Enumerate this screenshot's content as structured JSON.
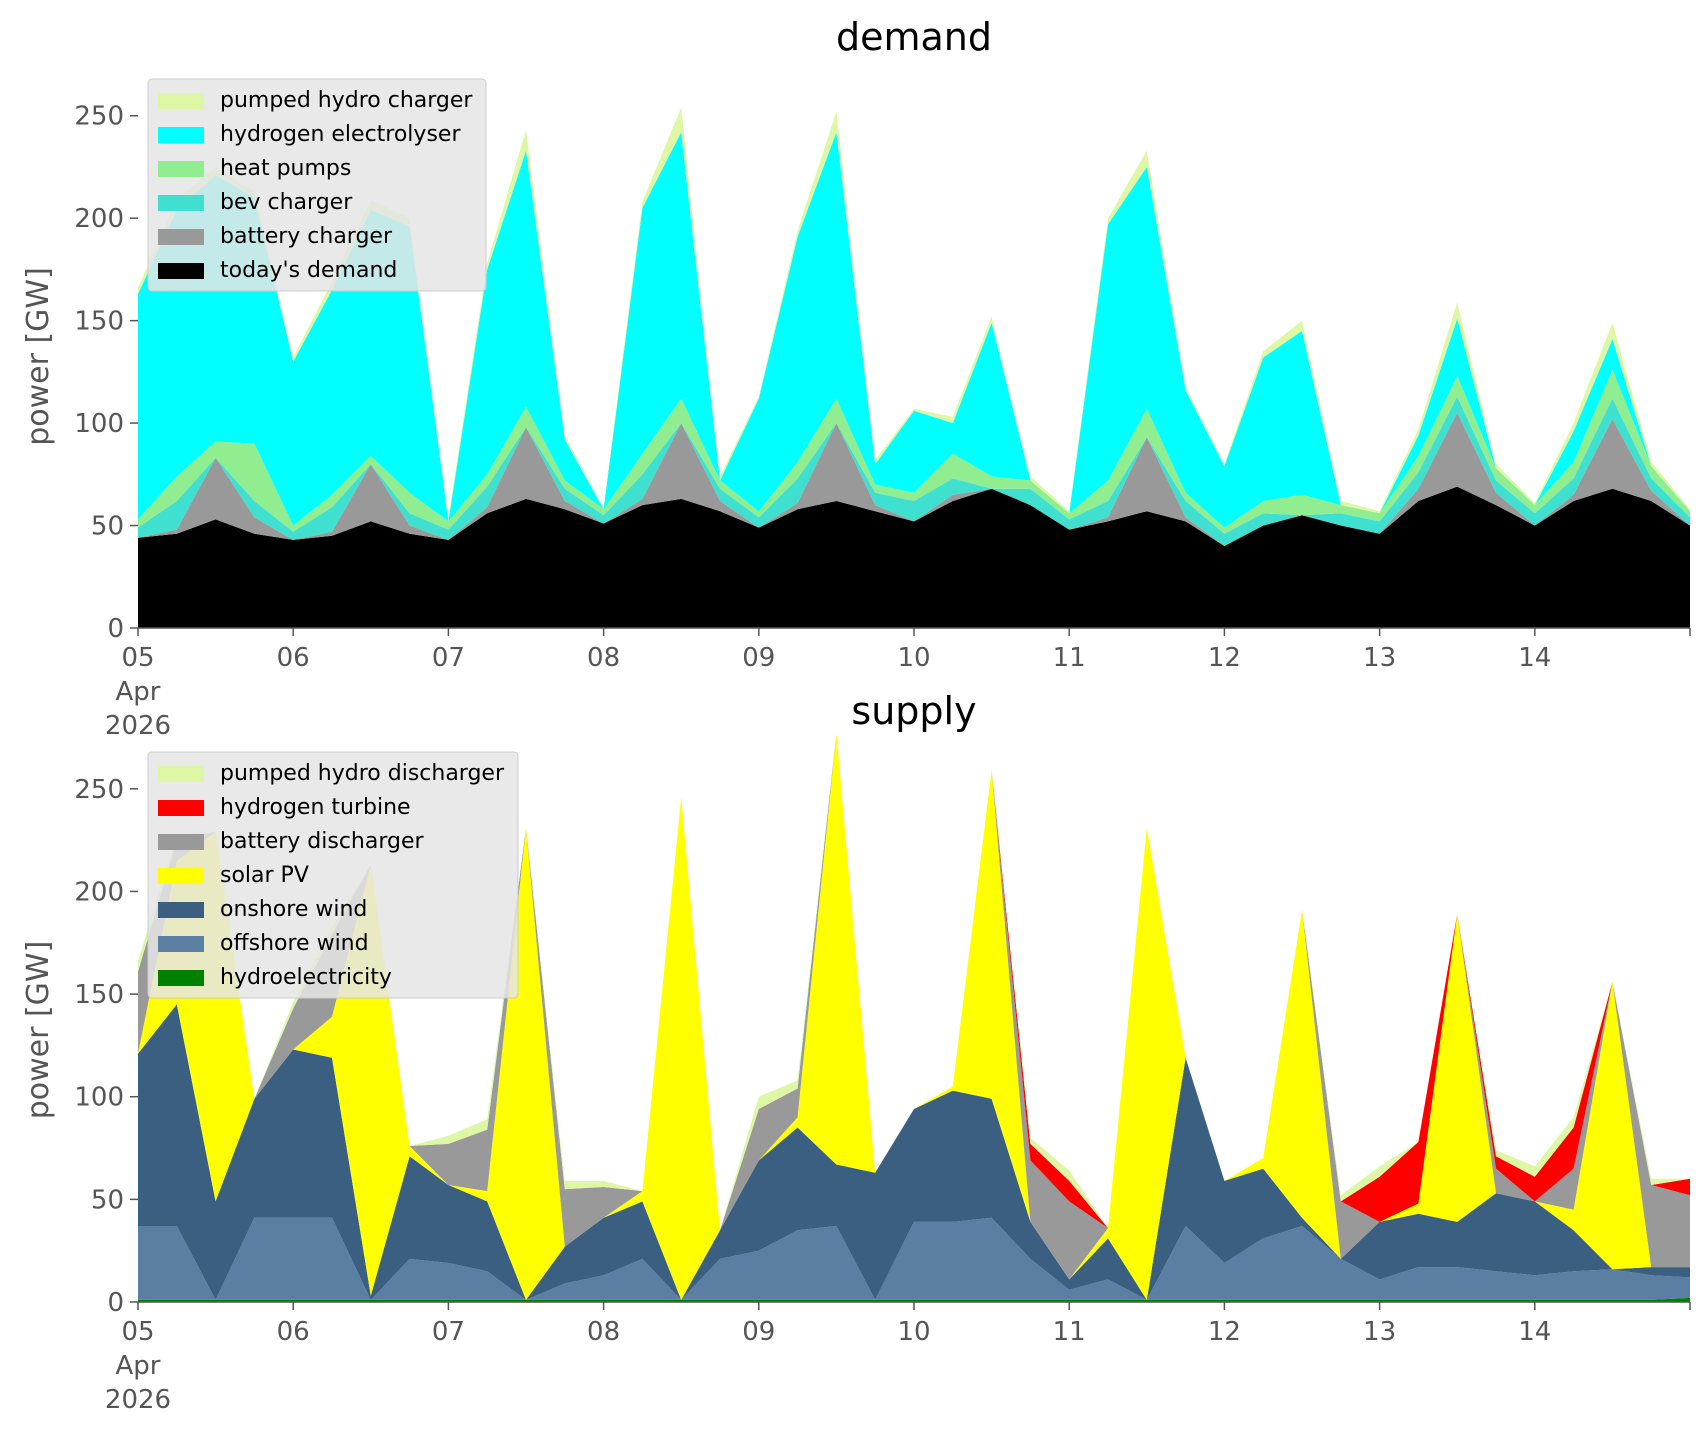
{
  "chart_data": [
    {
      "type": "area",
      "title": "demand",
      "xlabel": "",
      "ylabel": "power [GW]",
      "ylim": [
        0,
        265
      ],
      "yticks": [
        0,
        50,
        100,
        150,
        200,
        250
      ],
      "xlim": [
        "2026-04-05 00:00",
        "2026-04-15 00:00"
      ],
      "xtick_labels": [
        "05\nApr\n2026",
        "06",
        "07",
        "08",
        "09",
        "10",
        "11",
        "12",
        "13",
        "14"
      ],
      "grid": false,
      "legend": "top-left",
      "x": [
        "2026-04-05 00:00",
        "2026-04-05 06:00",
        "2026-04-05 12:00",
        "2026-04-05 18:00",
        "2026-04-06 00:00",
        "2026-04-06 06:00",
        "2026-04-06 12:00",
        "2026-04-06 18:00",
        "2026-04-07 00:00",
        "2026-04-07 06:00",
        "2026-04-07 12:00",
        "2026-04-07 18:00",
        "2026-04-08 00:00",
        "2026-04-08 06:00",
        "2026-04-08 12:00",
        "2026-04-08 18:00",
        "2026-04-09 00:00",
        "2026-04-09 06:00",
        "2026-04-09 12:00",
        "2026-04-09 18:00",
        "2026-04-10 00:00",
        "2026-04-10 06:00",
        "2026-04-10 12:00",
        "2026-04-10 18:00",
        "2026-04-11 00:00",
        "2026-04-11 06:00",
        "2026-04-11 12:00",
        "2026-04-11 18:00",
        "2026-04-12 00:00",
        "2026-04-12 06:00",
        "2026-04-12 12:00",
        "2026-04-12 18:00",
        "2026-04-13 00:00",
        "2026-04-13 06:00",
        "2026-04-13 12:00",
        "2026-04-13 18:00",
        "2026-04-14 00:00",
        "2026-04-14 06:00",
        "2026-04-14 12:00",
        "2026-04-14 18:00",
        "2026-04-15 00:00"
      ],
      "series": [
        {
          "name": "today's demand",
          "color": "#000000",
          "values": [
            44,
            46,
            53,
            46,
            43,
            45,
            52,
            46,
            43,
            56,
            63,
            58,
            51,
            60,
            63,
            57,
            49,
            58,
            62,
            57,
            52,
            62,
            68,
            60,
            48,
            52,
            57,
            52,
            40,
            50,
            55,
            50,
            46,
            62,
            69,
            60,
            50,
            62,
            68,
            62,
            50
          ]
        },
        {
          "name": "battery charger",
          "color": "#999999",
          "values": [
            0,
            2,
            30,
            8,
            0,
            2,
            28,
            4,
            0,
            3,
            35,
            4,
            0,
            3,
            37,
            5,
            0,
            3,
            38,
            3,
            0,
            3,
            0,
            0,
            0,
            2,
            36,
            2,
            0,
            0,
            0,
            0,
            0,
            6,
            36,
            6,
            0,
            3,
            34,
            5,
            0
          ]
        },
        {
          "name": "bev charger",
          "color": "#40e0d0",
          "values": [
            5,
            14,
            0,
            8,
            4,
            12,
            0,
            6,
            5,
            10,
            0,
            6,
            4,
            12,
            0,
            6,
            5,
            12,
            0,
            6,
            10,
            8,
            0,
            8,
            5,
            8,
            0,
            8,
            6,
            6,
            0,
            6,
            6,
            8,
            8,
            6,
            6,
            8,
            10,
            6,
            4
          ]
        },
        {
          "name": "heat pumps",
          "color": "#90ee90",
          "values": [
            4,
            12,
            8,
            28,
            3,
            6,
            4,
            10,
            4,
            6,
            10,
            4,
            3,
            10,
            12,
            4,
            3,
            8,
            12,
            4,
            4,
            12,
            6,
            4,
            3,
            10,
            14,
            4,
            3,
            6,
            10,
            4,
            4,
            8,
            10,
            6,
            4,
            8,
            14,
            6,
            3
          ]
        },
        {
          "name": "hydrogen electrolyser",
          "color": "#00ffff",
          "values": [
            110,
            130,
            130,
            120,
            80,
            100,
            120,
            130,
            0,
            100,
            125,
            20,
            0,
            120,
            130,
            0,
            55,
            110,
            130,
            10,
            40,
            15,
            75,
            0,
            0,
            125,
            118,
            50,
            30,
            70,
            80,
            0,
            0,
            10,
            28,
            0,
            0,
            15,
            15,
            0,
            0
          ]
        },
        {
          "name": "pumped hydro charger",
          "color": "#ddf7a5",
          "values": [
            3,
            5,
            4,
            3,
            2,
            4,
            5,
            4,
            2,
            3,
            10,
            2,
            1,
            3,
            12,
            2,
            1,
            3,
            10,
            2,
            1,
            3,
            3,
            2,
            1,
            3,
            8,
            2,
            1,
            3,
            5,
            2,
            1,
            3,
            8,
            2,
            1,
            4,
            8,
            2,
            1
          ]
        }
      ]
    },
    {
      "type": "area",
      "title": "supply",
      "xlabel": "",
      "ylabel": "power [GW]",
      "ylim": [
        0,
        265
      ],
      "yticks": [
        0,
        50,
        100,
        150,
        200,
        250
      ],
      "xlim": [
        "2026-04-05 00:00",
        "2026-04-15 00:00"
      ],
      "xtick_labels": [
        "05\nApr\n2026",
        "06",
        "07",
        "08",
        "09",
        "10",
        "11",
        "12",
        "13",
        "14"
      ],
      "grid": false,
      "legend": "top-left",
      "x": [
        "2026-04-05 00:00",
        "2026-04-05 06:00",
        "2026-04-05 12:00",
        "2026-04-05 18:00",
        "2026-04-06 00:00",
        "2026-04-06 06:00",
        "2026-04-06 12:00",
        "2026-04-06 18:00",
        "2026-04-07 00:00",
        "2026-04-07 06:00",
        "2026-04-07 12:00",
        "2026-04-07 18:00",
        "2026-04-08 00:00",
        "2026-04-08 06:00",
        "2026-04-08 12:00",
        "2026-04-08 18:00",
        "2026-04-09 00:00",
        "2026-04-09 06:00",
        "2026-04-09 12:00",
        "2026-04-09 18:00",
        "2026-04-10 00:00",
        "2026-04-10 06:00",
        "2026-04-10 12:00",
        "2026-04-10 18:00",
        "2026-04-11 00:00",
        "2026-04-11 06:00",
        "2026-04-11 12:00",
        "2026-04-11 18:00",
        "2026-04-12 00:00",
        "2026-04-12 06:00",
        "2026-04-12 12:00",
        "2026-04-12 18:00",
        "2026-04-13 00:00",
        "2026-04-13 06:00",
        "2026-04-13 12:00",
        "2026-04-13 18:00",
        "2026-04-14 00:00",
        "2026-04-14 06:00",
        "2026-04-14 12:00",
        "2026-04-14 18:00",
        "2026-04-15 00:00"
      ],
      "series": [
        {
          "name": "hydroelectricity",
          "color": "#008000",
          "values": [
            1,
            1,
            1,
            1,
            1,
            1,
            1,
            1,
            1,
            1,
            1,
            1,
            1,
            1,
            1,
            1,
            1,
            1,
            1,
            1,
            1,
            1,
            1,
            1,
            1,
            1,
            1,
            1,
            1,
            1,
            1,
            1,
            1,
            1,
            1,
            1,
            1,
            1,
            1,
            1,
            2
          ]
        },
        {
          "name": "offshore wind",
          "color": "#5b7fa3",
          "values": [
            36,
            36,
            0,
            40,
            40,
            40,
            0,
            20,
            18,
            14,
            0,
            8,
            12,
            20,
            0,
            20,
            24,
            34,
            36,
            0,
            38,
            38,
            40,
            20,
            5,
            10,
            0,
            36,
            18,
            30,
            36,
            20,
            10,
            16,
            16,
            14,
            12,
            14,
            15,
            12,
            10
          ]
        },
        {
          "name": "onshore wind",
          "color": "#3b5f80",
          "values": [
            84,
            108,
            48,
            58,
            82,
            78,
            2,
            50,
            38,
            34,
            0,
            18,
            28,
            28,
            0,
            14,
            44,
            50,
            30,
            62,
            55,
            64,
            58,
            18,
            5,
            20,
            0,
            82,
            40,
            34,
            4,
            0,
            28,
            26,
            22,
            38,
            36,
            20,
            0,
            4,
            5
          ]
        },
        {
          "name": "solar PV",
          "color": "#ffff00",
          "values": [
            0,
            70,
            180,
            0,
            0,
            20,
            210,
            5,
            0,
            5,
            230,
            0,
            0,
            5,
            245,
            0,
            0,
            5,
            210,
            0,
            0,
            2,
            160,
            0,
            0,
            5,
            230,
            0,
            0,
            5,
            150,
            0,
            0,
            5,
            150,
            0,
            0,
            10,
            140,
            0,
            0
          ]
        },
        {
          "name": "battery discharger",
          "color": "#999999",
          "values": [
            40,
            10,
            0,
            0,
            20,
            40,
            0,
            0,
            20,
            30,
            0,
            28,
            15,
            0,
            0,
            0,
            25,
            14,
            0,
            0,
            0,
            0,
            0,
            30,
            38,
            0,
            0,
            0,
            0,
            0,
            0,
            28,
            0,
            0,
            0,
            12,
            0,
            20,
            0,
            40,
            35
          ]
        },
        {
          "name": "hydrogen turbine",
          "color": "#ff0000",
          "values": [
            0,
            0,
            0,
            0,
            0,
            0,
            0,
            0,
            0,
            0,
            0,
            0,
            0,
            0,
            0,
            0,
            0,
            0,
            0,
            0,
            0,
            0,
            0,
            8,
            10,
            0,
            0,
            0,
            0,
            0,
            0,
            0,
            22,
            30,
            0,
            6,
            12,
            20,
            0,
            0,
            8
          ]
        },
        {
          "name": "pumped hydro discharger",
          "color": "#ddf7a5",
          "values": [
            5,
            3,
            0,
            0,
            3,
            4,
            0,
            0,
            4,
            5,
            0,
            4,
            3,
            0,
            0,
            0,
            6,
            4,
            0,
            0,
            0,
            0,
            0,
            3,
            5,
            0,
            0,
            0,
            0,
            0,
            0,
            3,
            5,
            0,
            0,
            3,
            5,
            5,
            0,
            3,
            0
          ]
        }
      ]
    }
  ]
}
